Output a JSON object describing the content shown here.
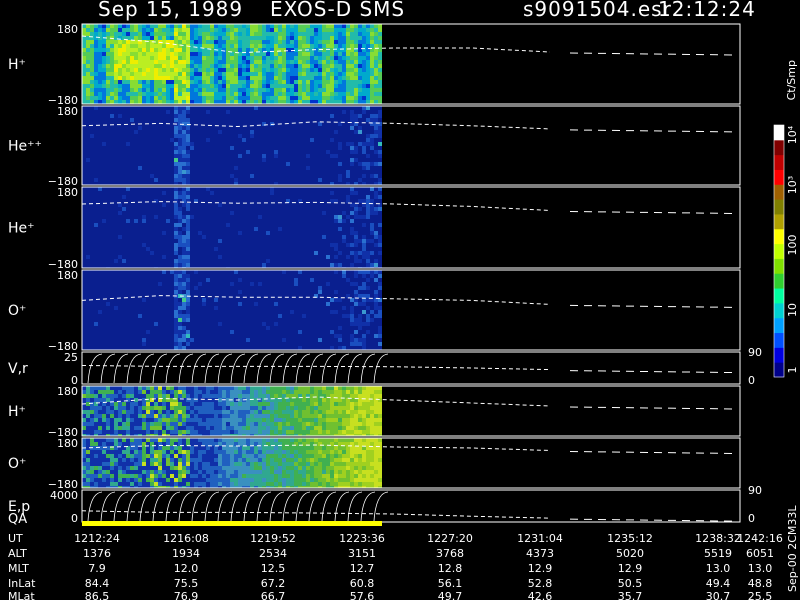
{
  "header": {
    "date": "Sep 15, 1989",
    "instrument": "EXOS-D SMS",
    "file": "s9091504.esr",
    "time": "12:12:24"
  },
  "colorbar": {
    "unit": "Ct/Smp",
    "labels": [
      "1",
      "10",
      "100",
      "10³",
      "10⁴"
    ],
    "colors": [
      "#00008b",
      "#0000e0",
      "#0050ff",
      "#00a0ff",
      "#00d0d0",
      "#00ffa0",
      "#30d030",
      "#80e000",
      "#c0ff00",
      "#ffff00",
      "#b0a000",
      "#808000",
      "#a06000",
      "#ff0000",
      "#c00000",
      "#800000",
      "#ffffff"
    ]
  },
  "side_label": "Sep-00  2CM33L",
  "panels": [
    {
      "id": "h_plus_top",
      "label": "H⁺",
      "ytop": "180",
      "ybot": "−180",
      "type": "spectrogram",
      "palette": "yellow",
      "dashes": [
        0.85,
        0.77,
        0.64,
        0.68,
        0.7,
        0.7,
        0.65
      ]
    },
    {
      "id": "he_plus_plus",
      "label": "He⁺⁺",
      "ytop": "180",
      "ybot": "−180",
      "type": "spectrogram",
      "palette": "blue",
      "dashes": [
        0.75,
        0.78,
        0.74,
        0.8,
        0.78,
        0.75,
        0.71
      ]
    },
    {
      "id": "he_plus",
      "label": "He⁺",
      "ytop": "180",
      "ybot": "−180",
      "type": "spectrogram",
      "palette": "blue",
      "dashes": [
        0.79,
        0.82,
        0.8,
        0.81,
        0.79,
        0.76,
        0.71
      ]
    },
    {
      "id": "o_plus",
      "label": "O⁺",
      "ytop": "180",
      "ybot": "−180",
      "type": "spectrogram",
      "palette": "blue",
      "dashes": [
        0.62,
        0.68,
        0.66,
        0.66,
        0.64,
        0.62,
        0.57
      ]
    },
    {
      "id": "v_r",
      "label": "V,r",
      "ytop": "25",
      "ybot": "0",
      "type": "curves",
      "rtop": "90",
      "rbot": "0",
      "dashes": [
        0.58,
        0.55,
        0.55,
        0.55,
        0.54,
        0.5,
        0.45
      ]
    },
    {
      "id": "h_plus_low",
      "label": "H⁺",
      "ytop": "180",
      "ybot": "−180",
      "type": "spectrogram",
      "palette": "green",
      "dashes": [
        0.64,
        0.75,
        0.72,
        0.78,
        0.72,
        0.66,
        0.6
      ]
    },
    {
      "id": "o_plus_low",
      "label": "O⁺",
      "ytop": "180",
      "ybot": "−180",
      "type": "spectrogram",
      "palette": "green",
      "dashes": [
        0.8,
        0.85,
        0.84,
        0.86,
        0.82,
        0.8,
        0.75
      ]
    },
    {
      "id": "e_p",
      "label": "E,p",
      "ytop": "4000",
      "ybot": "0",
      "type": "curves",
      "rtop": "90",
      "rbot": "0",
      "dashes": [
        0.35,
        0.3,
        0.3,
        0.28,
        0.25,
        0.18,
        0.12
      ]
    }
  ],
  "qa_label": "QA",
  "xaxis": {
    "row_labels": [
      "UT",
      "ALT",
      "MLT",
      "InLat",
      "MLat"
    ],
    "columns": [
      [
        "1212:24",
        "1376",
        "7.9",
        "84.4",
        "86.5"
      ],
      [
        "1216:08",
        "1934",
        "12.0",
        "75.5",
        "76.9"
      ],
      [
        "1219:52",
        "2534",
        "12.5",
        "67.2",
        "66.7"
      ],
      [
        "1223:36",
        "3151",
        "12.7",
        "60.8",
        "57.6"
      ],
      [
        "1227:20",
        "3768",
        "12.8",
        "56.1",
        "49.7"
      ],
      [
        "1231:04",
        "4373",
        "12.9",
        "52.8",
        "42.6"
      ],
      [
        "1235:12",
        "5020",
        "12.9",
        "50.5",
        "35.7"
      ],
      [
        "1238:32",
        "5519",
        "13.0",
        "49.4",
        "30.7"
      ],
      [
        "1242:16",
        "6051",
        "13.0",
        "48.8",
        "25.5"
      ]
    ]
  },
  "chart_data": {
    "type": "heatmap",
    "title": "Sep 15, 1989   EXOS-D SMS",
    "panels": [
      "H⁺",
      "He⁺⁺",
      "He⁺",
      "O⁺",
      "V,r",
      "H⁺",
      "O⁺",
      "E,p"
    ],
    "x": [
      "1212:24",
      "1216:08",
      "1219:52",
      "1223:36",
      "1227:20",
      "1231:04",
      "1235:12",
      "1238:32",
      "1242:16"
    ],
    "ylim": [
      -180,
      180
    ],
    "colorbar_unit": "Ct/Smp",
    "colorbar_range": [
      1,
      10000
    ],
    "colorbar_scale": "log"
  }
}
